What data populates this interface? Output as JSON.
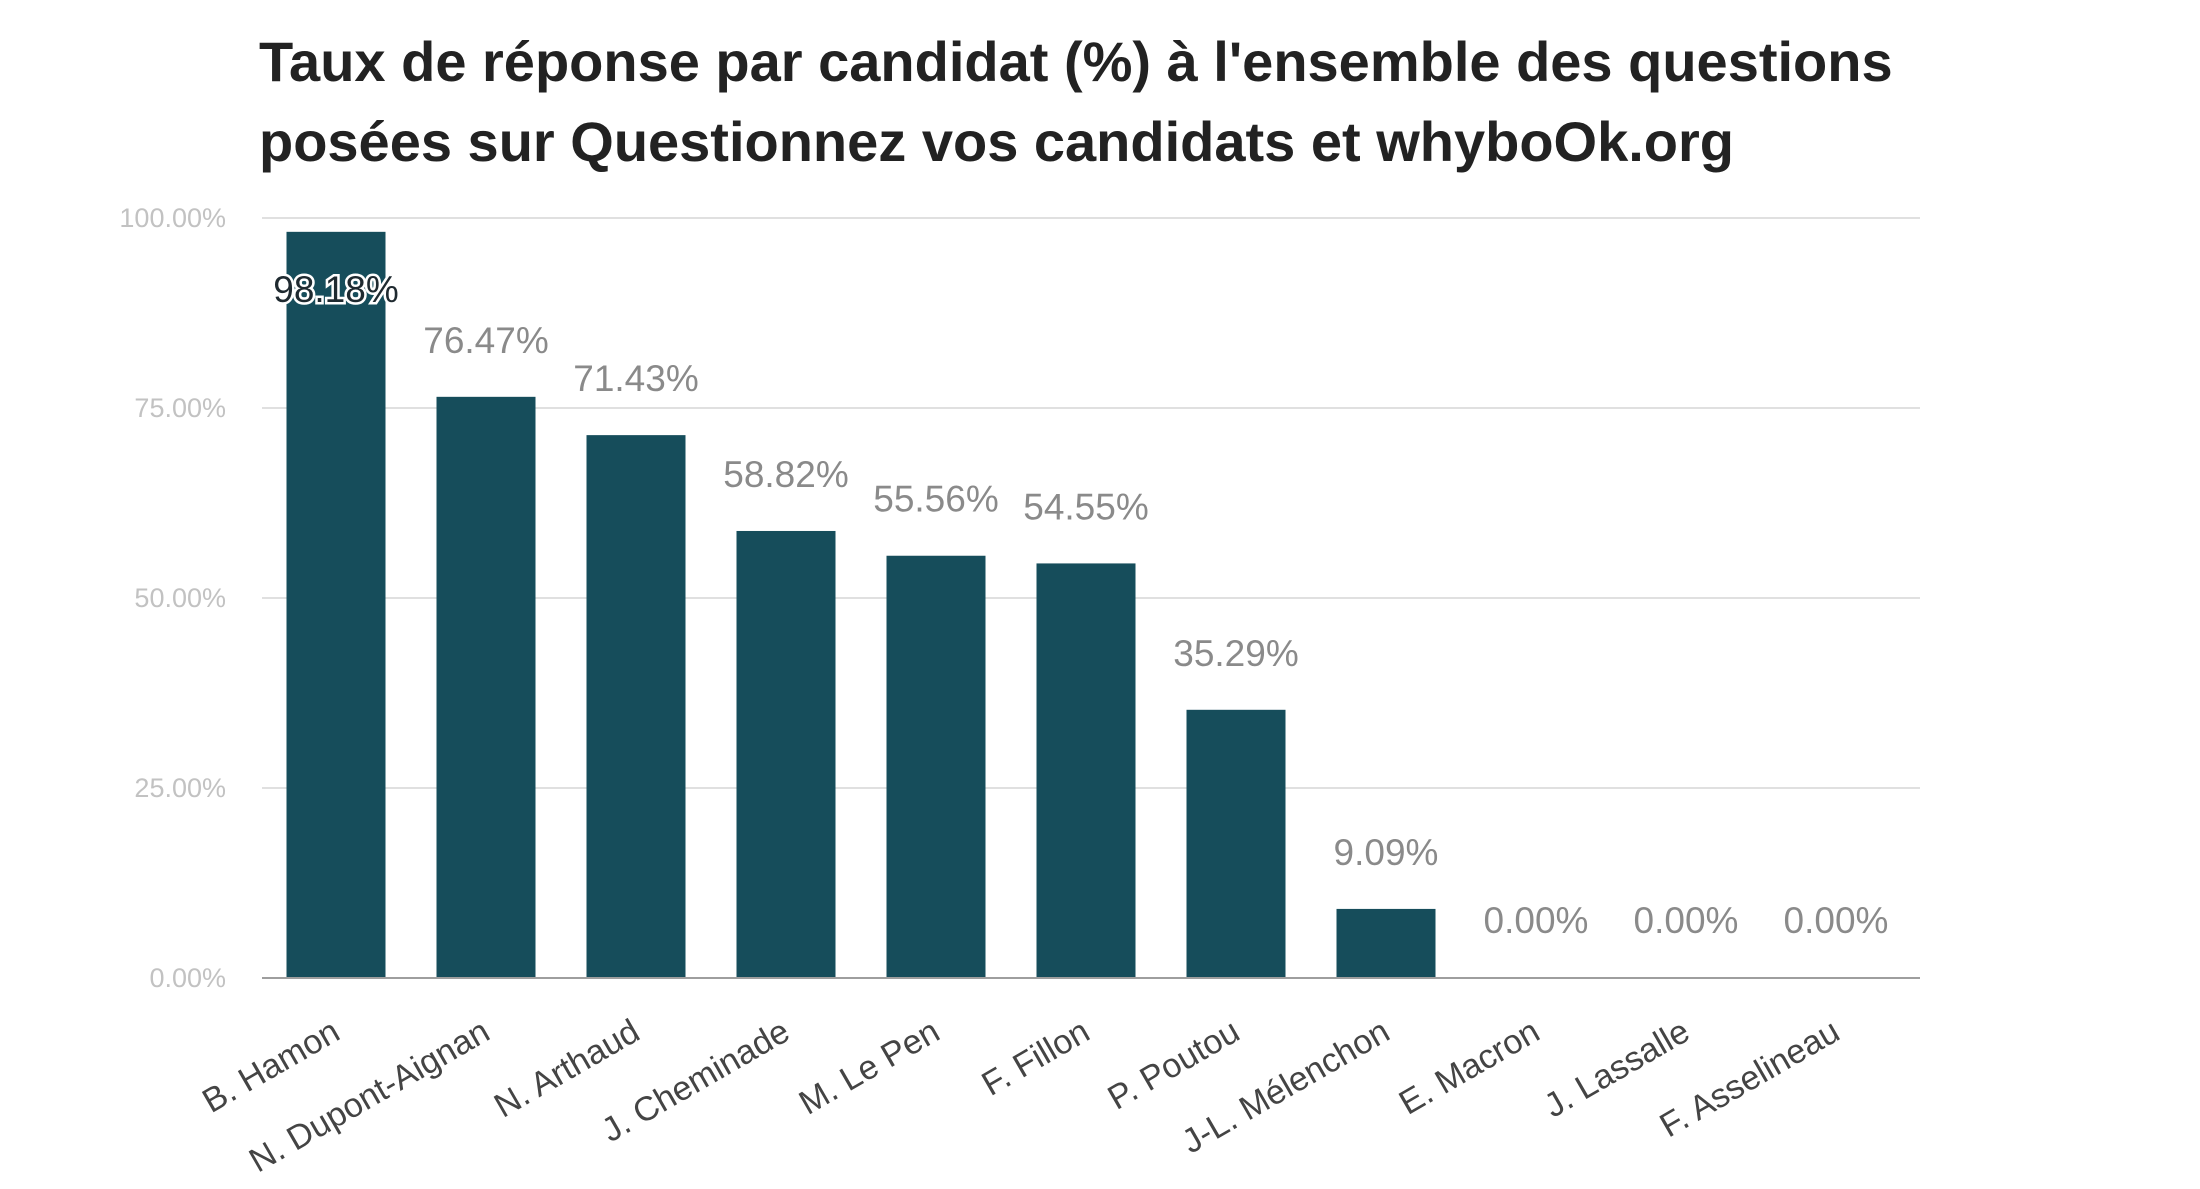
{
  "chart_data": {
    "type": "bar",
    "title": "Taux de réponse par candidat (%) à l'ensemble des questions posées sur Questionnez vos candidats et whyboOk.org",
    "categories": [
      "B. Hamon",
      "N. Dupont-Aignan",
      "N. Arthaud",
      "J. Cheminade",
      "M. Le Pen",
      "F. Fillon",
      "P. Poutou",
      "J-L. Mélenchon",
      "E. Macron",
      "J. Lassalle",
      "F. Asselineau"
    ],
    "values": [
      98.18,
      76.47,
      71.43,
      58.82,
      55.56,
      54.55,
      35.29,
      9.09,
      0.0,
      0.0,
      0.0
    ],
    "data_labels": [
      "98.18%",
      "76.47%",
      "71.43%",
      "58.82%",
      "55.56%",
      "54.55%",
      "35.29%",
      "9.09%",
      "0.00%",
      "0.00%",
      "0.00%"
    ],
    "y_ticks": [
      0,
      25,
      50,
      75,
      100
    ],
    "y_tick_labels": [
      "0.00%",
      "25.00%",
      "50.00%",
      "75.00%",
      "100.00%"
    ],
    "ylim": [
      0,
      100
    ],
    "xlabel": "",
    "ylabel": "",
    "grid": true,
    "legend": "none",
    "colors": {
      "bar": "#164d5b",
      "grid": "#e0e0e0",
      "axis": "#9e9e9e"
    }
  }
}
